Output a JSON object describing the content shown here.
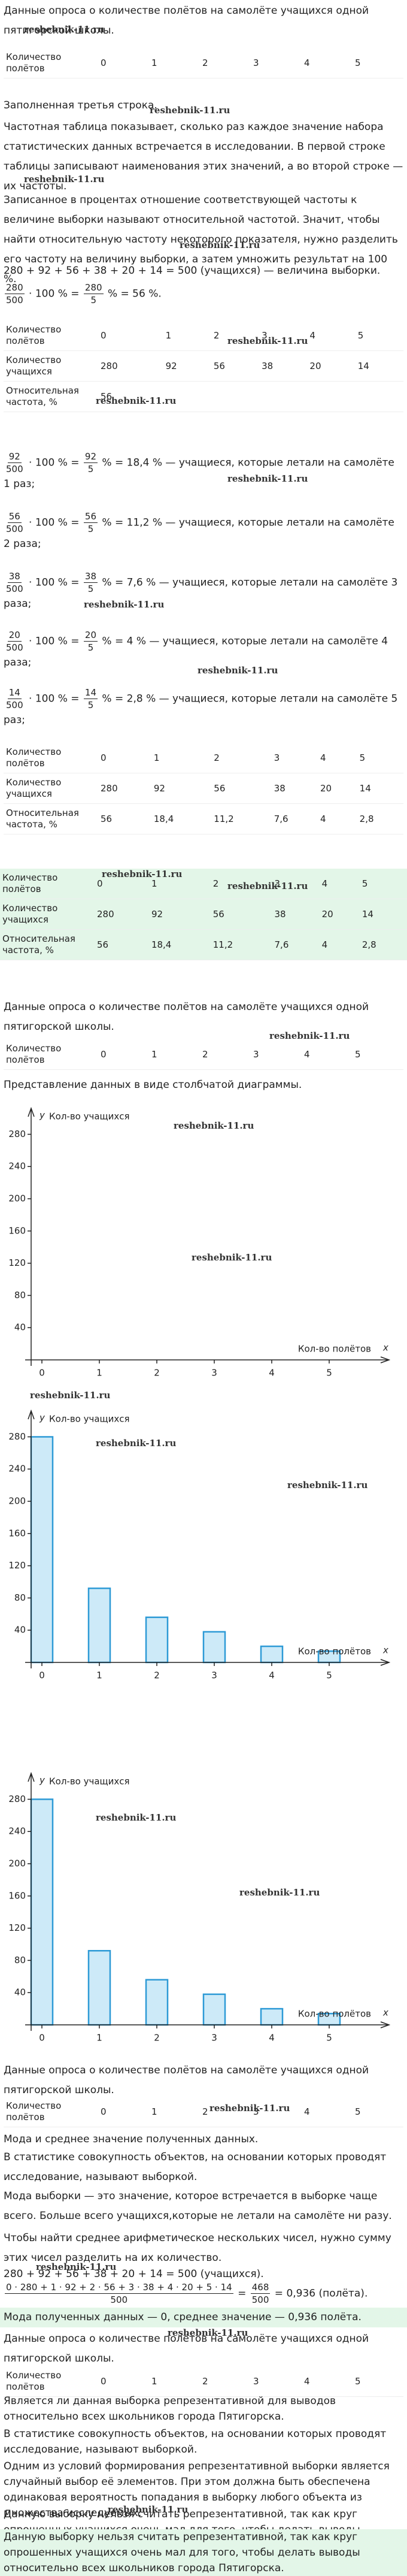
{
  "watermark": "reshebnik-11.ru",
  "survey_title": "Данные опроса о количестве полётов на самолёте учащихся одной пятигорской школы.",
  "flights_row": [
    "Количество полётов",
    "0",
    "1",
    "2",
    "3",
    "4",
    "5"
  ],
  "students_row": [
    "Количество учащихся",
    "280",
    "92",
    "56",
    "38",
    "20",
    "14"
  ],
  "freq_row_partial": [
    "Относительная частота, %",
    "56"
  ],
  "freq_row": [
    "Относительная частота, %",
    "56",
    "18,4",
    "11,2",
    "7,6",
    "4",
    "2,8"
  ],
  "third_row_note": "Заполненная третья строка.",
  "para_freq_table": "Частотная таблица показывает, сколько раз каждое значение набора статистических данных встречается в исследовании. В первой строке таблицы записывают наименования этих значений, а во второй строке — их частоты.",
  "para_relative": "Записанное в процентах отношение соответствующей частоты к величине выборки называют относительной частотой. Значит, чтобы найти относительную частоту некоторого показателя, нужно разделить его частоту на величину выборки, а затем умножить результат на 100 %.",
  "sum_sample": "280 + 92 + 56 + 38 + 20 + 14 = 500 (учащихся) — величина выборки.",
  "formulas": {
    "f0": [
      {
        "n": "280",
        "d": "500"
      },
      " · 100 % = ",
      {
        "n": "280",
        "d": "5"
      },
      " % = 56 %."
    ],
    "f1": [
      {
        "n": "92",
        "d": "500"
      },
      " · 100 % = ",
      {
        "n": "92",
        "d": "5"
      },
      " % = 18,4 % — учащиеся, которые летали на самолёте 1 раз;"
    ],
    "f2": [
      {
        "n": "56",
        "d": "500"
      },
      " · 100 % = ",
      {
        "n": "56",
        "d": "5"
      },
      " % = 11,2 % — учащиеся, которые летали на самолёте 2 раза;"
    ],
    "f3": [
      {
        "n": "38",
        "d": "500"
      },
      " · 100 % = ",
      {
        "n": "38",
        "d": "5"
      },
      " % = 7,6 % — учащиеся, которые летали на самолёте 3 раза;"
    ],
    "f4": [
      {
        "n": "20",
        "d": "500"
      },
      " · 100 % = ",
      {
        "n": "20",
        "d": "5"
      },
      " % = 4 % — учащиеся, которые летали на самолёте 4 раза;"
    ],
    "f5": [
      {
        "n": "14",
        "d": "500"
      },
      " · 100 % = ",
      {
        "n": "14",
        "d": "5"
      },
      " % = 2,8 % — учащиеся, которые летали на самолёте 5 раз;"
    ],
    "mean": [
      {
        "n": "0 · 280 + 1 · 92 + 2 · 56 + 3 · 38 + 4 · 20 + 5 · 14",
        "d": "500"
      },
      " = ",
      {
        "n": "468",
        "d": "500"
      },
      " = 0,936 (полёта)."
    ]
  },
  "chart_heading": "Представление данных в виде столбчатой диаграммы.",
  "mode_heading": "Мода и среднее значение полученных данных.",
  "sample_def": "В статистике совокупность объектов, на основании которых проводят исследование, называют выборкой.",
  "mode_def": "Мода выборки — это значение, которое встречается в выборке чаще всего. Больше всего учащихся,которые не летали на самолёте ни разу.",
  "mean_def": "Чтобы найти среднее арифметическое нескольких чисел, нужно сумму этих чисел разделить на их количество.",
  "sum_students": "280 + 92 + 56 + 38 + 20 + 14 = 500 (учащихся).",
  "mode_answer": "Мода полученных данных — 0, среднее значение — 0,936 полёта.",
  "repr_question": "Является ли данная выборка репрезентативной для выводов относительно всех школьников города Пятигорска.",
  "repr_condition": "Одним из условий формирования репрезентативной выборки является случайный выбор её элементов. При этом должна быть обеспечена одинаковая вероятность попадания в выборку любого объекта из множества исследуемых.",
  "repr_reason": "Данную выборку нельзя считать репрезентативной, так как круг опрошенных учащихся очень мал для того, чтобы делать выводы относительно всех школьников города Пятигорска.",
  "repr_answer": "Данную выборку нельзя считать репрезентативной, так как круг опрошенных учащихся очень мал для того, чтобы делать выводы относительно всех школьников города Пятигорска.",
  "chart_data": [
    {
      "type": "bar",
      "ylabel": "Кол-во учащихся",
      "xlabel": "Кол-во полётов",
      "yaxis": "y",
      "xaxis": "x",
      "categories": [
        "0",
        "1",
        "2",
        "3",
        "4",
        "5"
      ],
      "ylim": [
        0,
        290
      ],
      "yticks": [
        40,
        80,
        120,
        160,
        200,
        240,
        280
      ]
    },
    {
      "type": "bar",
      "ylabel": "Кол-во учащихся",
      "xlabel": "Кол-во полётов",
      "yaxis": "y",
      "xaxis": "x",
      "categories": [
        "0",
        "1",
        "2",
        "3",
        "4",
        "5"
      ],
      "values": [
        280,
        92,
        56,
        38,
        20,
        14
      ],
      "color": "#cdeaf8",
      "edge_color": "#2d9ad6",
      "ylim": [
        0,
        290
      ],
      "yticks": [
        40,
        80,
        120,
        160,
        200,
        240,
        280
      ]
    },
    {
      "type": "bar",
      "ylabel": "Кол-во учащихся",
      "xlabel": "Кол-во полётов",
      "yaxis": "y",
      "xaxis": "x",
      "categories": [
        "0",
        "1",
        "2",
        "3",
        "4",
        "5"
      ],
      "values": [
        280,
        92,
        56,
        38,
        20,
        14
      ],
      "color": "#cdeaf8",
      "edge_color": "#2d9ad6",
      "ylim": [
        0,
        290
      ],
      "yticks": [
        40,
        80,
        120,
        160,
        200,
        240,
        280
      ]
    }
  ]
}
